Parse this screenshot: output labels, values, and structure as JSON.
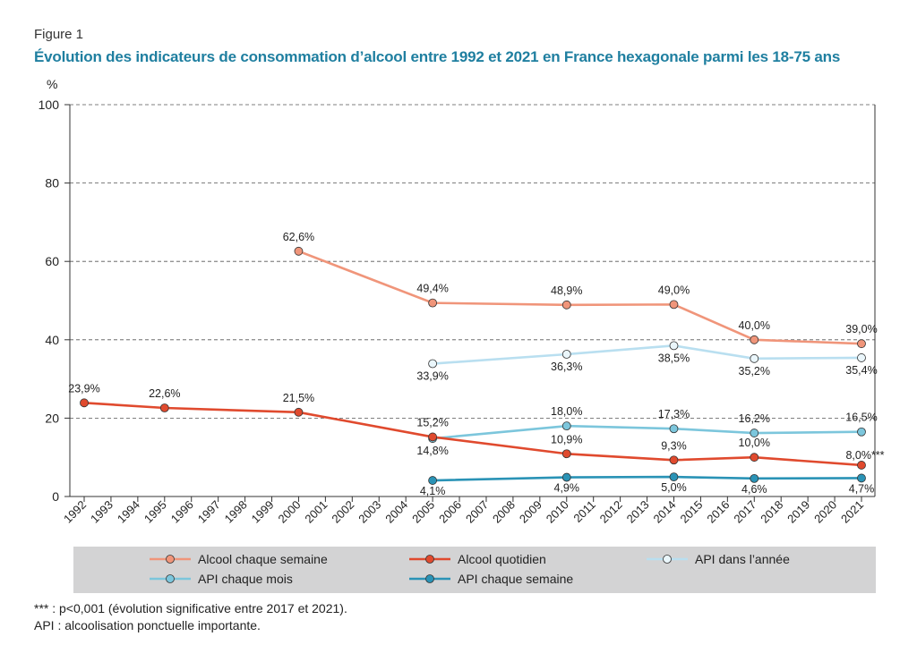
{
  "figure_label": "Figure 1",
  "title": "Évolution des indicateurs de consommation d’alcool entre 1992 et 2021 en France hexagonale parmi les 18-75 ans",
  "chart_data": {
    "type": "line",
    "y_unit": "%",
    "ylim": [
      0,
      100
    ],
    "yticks": [
      0,
      20,
      40,
      60,
      80,
      100
    ],
    "x_years": [
      1992,
      1993,
      1994,
      1995,
      1996,
      1997,
      1998,
      1999,
      2000,
      2001,
      2002,
      2003,
      2004,
      2005,
      2006,
      2007,
      2008,
      2009,
      2010,
      2011,
      2012,
      2013,
      2014,
      2015,
      2016,
      2017,
      2018,
      2019,
      2020,
      2021
    ],
    "grid": "horizontal dashed",
    "series": [
      {
        "name": "Alcool chaque semaine",
        "color": "#f0957a",
        "fill": "#f0957a",
        "points": [
          [
            2000,
            62.6
          ],
          [
            2005,
            49.4
          ],
          [
            2010,
            48.9
          ],
          [
            2014,
            49.0
          ],
          [
            2017,
            40.0
          ],
          [
            2021,
            39.0
          ]
        ],
        "labels": [
          "62,6%",
          "49,4%",
          "48,9%",
          "49,0%",
          "40,0%",
          "39,0%"
        ]
      },
      {
        "name": "Alcool quotidien",
        "color": "#e04a2e",
        "fill": "#e04a2e",
        "points": [
          [
            1992,
            23.9
          ],
          [
            1995,
            22.6
          ],
          [
            2000,
            21.5
          ],
          [
            2005,
            15.2
          ],
          [
            2010,
            10.9
          ],
          [
            2014,
            9.3
          ],
          [
            2017,
            10.0
          ],
          [
            2021,
            8.0
          ]
        ],
        "labels": [
          "23,9%",
          "22,6%",
          "21,5%",
          "15,2%",
          "10,9%",
          "9,3%",
          "10,0%",
          "8,0%***"
        ]
      },
      {
        "name": "API dans l’année",
        "color": "#b9dff0",
        "fill": "#eaf6fb",
        "points": [
          [
            2005,
            33.9
          ],
          [
            2010,
            36.3
          ],
          [
            2014,
            38.5
          ],
          [
            2017,
            35.2
          ],
          [
            2021,
            35.4
          ]
        ],
        "labels": [
          "33,9%",
          "36,3%",
          "38,5%",
          "35,2%",
          "35,4%"
        ]
      },
      {
        "name": "API chaque mois",
        "color": "#7cc6dc",
        "fill": "#7cc6dc",
        "points": [
          [
            2005,
            14.8
          ],
          [
            2010,
            18.0
          ],
          [
            2014,
            17.3
          ],
          [
            2017,
            16.2
          ],
          [
            2021,
            16.5
          ]
        ],
        "labels": [
          "14,8%",
          "18,0%",
          "17,3%",
          "16,2%",
          "16,5%"
        ]
      },
      {
        "name": "API chaque semaine",
        "color": "#2a93b6",
        "fill": "#2a93b6",
        "points": [
          [
            2005,
            4.1
          ],
          [
            2010,
            4.9
          ],
          [
            2014,
            5.0
          ],
          [
            2017,
            4.6
          ],
          [
            2021,
            4.7
          ]
        ],
        "labels": [
          "4,1%",
          "4,9%",
          "5,0%",
          "4,6%",
          "4,7%"
        ]
      }
    ]
  },
  "legend": [
    "Alcool chaque semaine",
    "Alcool quotidien",
    "API dans l’année",
    "API chaque mois",
    "API chaque semaine"
  ],
  "notes": {
    "line1": "*** : p<0,001 (évolution significative entre 2017 et 2021).",
    "line2": "API : alcoolisation ponctuelle importante."
  }
}
